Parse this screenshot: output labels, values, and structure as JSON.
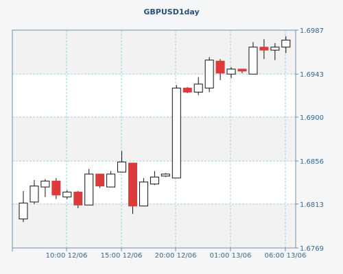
{
  "chart_data": {
    "type": "candlestick",
    "title": "GBPUSD1day",
    "y_ticks": [
      "1.6987",
      "1.6943",
      "1.6900",
      "1.6856",
      "1.6813",
      "1.6769"
    ],
    "ylim": [
      1.6769,
      1.6987
    ],
    "x_ticks": [
      "10:00 12/06",
      "15:00 12/06",
      "20:00 12/06",
      "01:00 13/06",
      "06:00 13/06"
    ],
    "grid": true,
    "colors": {
      "bull": "#ffffff",
      "bear": "#dd3b3b",
      "outline": "#111111",
      "grid": "#9fd0dc",
      "axis": "#6d8fb0",
      "label": "#3a6690",
      "title": "#2b4f7a",
      "plot_bg_light": "#ffffff",
      "plot_bg_band": "#f2f2f2"
    },
    "candles": [
      {
        "open": 1.6798,
        "high": 1.6826,
        "low": 1.6795,
        "close": 1.6814
      },
      {
        "open": 1.6815,
        "high": 1.6837,
        "low": 1.6813,
        "close": 1.6831
      },
      {
        "open": 1.683,
        "high": 1.6838,
        "low": 1.682,
        "close": 1.6836
      },
      {
        "open": 1.6836,
        "high": 1.6839,
        "low": 1.6818,
        "close": 1.6822
      },
      {
        "open": 1.682,
        "high": 1.6827,
        "low": 1.6818,
        "close": 1.6825
      },
      {
        "open": 1.6825,
        "high": 1.6826,
        "low": 1.6809,
        "close": 1.6812
      },
      {
        "open": 1.6812,
        "high": 1.6848,
        "low": 1.6812,
        "close": 1.6843
      },
      {
        "open": 1.6843,
        "high": 1.6843,
        "low": 1.6829,
        "close": 1.6831
      },
      {
        "open": 1.683,
        "high": 1.6846,
        "low": 1.683,
        "close": 1.6843
      },
      {
        "open": 1.6845,
        "high": 1.6866,
        "low": 1.6845,
        "close": 1.6855
      },
      {
        "open": 1.6854,
        "high": 1.6854,
        "low": 1.6803,
        "close": 1.6811
      },
      {
        "open": 1.6811,
        "high": 1.6839,
        "low": 1.6811,
        "close": 1.6835
      },
      {
        "open": 1.6833,
        "high": 1.6846,
        "low": 1.6832,
        "close": 1.684
      },
      {
        "open": 1.6841,
        "high": 1.6844,
        "low": 1.684,
        "close": 1.6843
      },
      {
        "open": 1.6839,
        "high": 1.6932,
        "low": 1.6839,
        "close": 1.6929
      },
      {
        "open": 1.6929,
        "high": 1.693,
        "low": 1.6924,
        "close": 1.6925
      },
      {
        "open": 1.6925,
        "high": 1.694,
        "low": 1.6922,
        "close": 1.6933
      },
      {
        "open": 1.6929,
        "high": 1.696,
        "low": 1.6925,
        "close": 1.6957
      },
      {
        "open": 1.6956,
        "high": 1.6958,
        "low": 1.6937,
        "close": 1.6944
      },
      {
        "open": 1.6943,
        "high": 1.695,
        "low": 1.6939,
        "close": 1.6948
      },
      {
        "open": 1.6948,
        "high": 1.6948,
        "low": 1.6944,
        "close": 1.6946
      },
      {
        "open": 1.6943,
        "high": 1.6975,
        "low": 1.6943,
        "close": 1.697
      },
      {
        "open": 1.697,
        "high": 1.6978,
        "low": 1.6958,
        "close": 1.6967
      },
      {
        "open": 1.6967,
        "high": 1.6974,
        "low": 1.6957,
        "close": 1.697
      },
      {
        "open": 1.697,
        "high": 1.6981,
        "low": 1.6964,
        "close": 1.6977
      }
    ]
  }
}
